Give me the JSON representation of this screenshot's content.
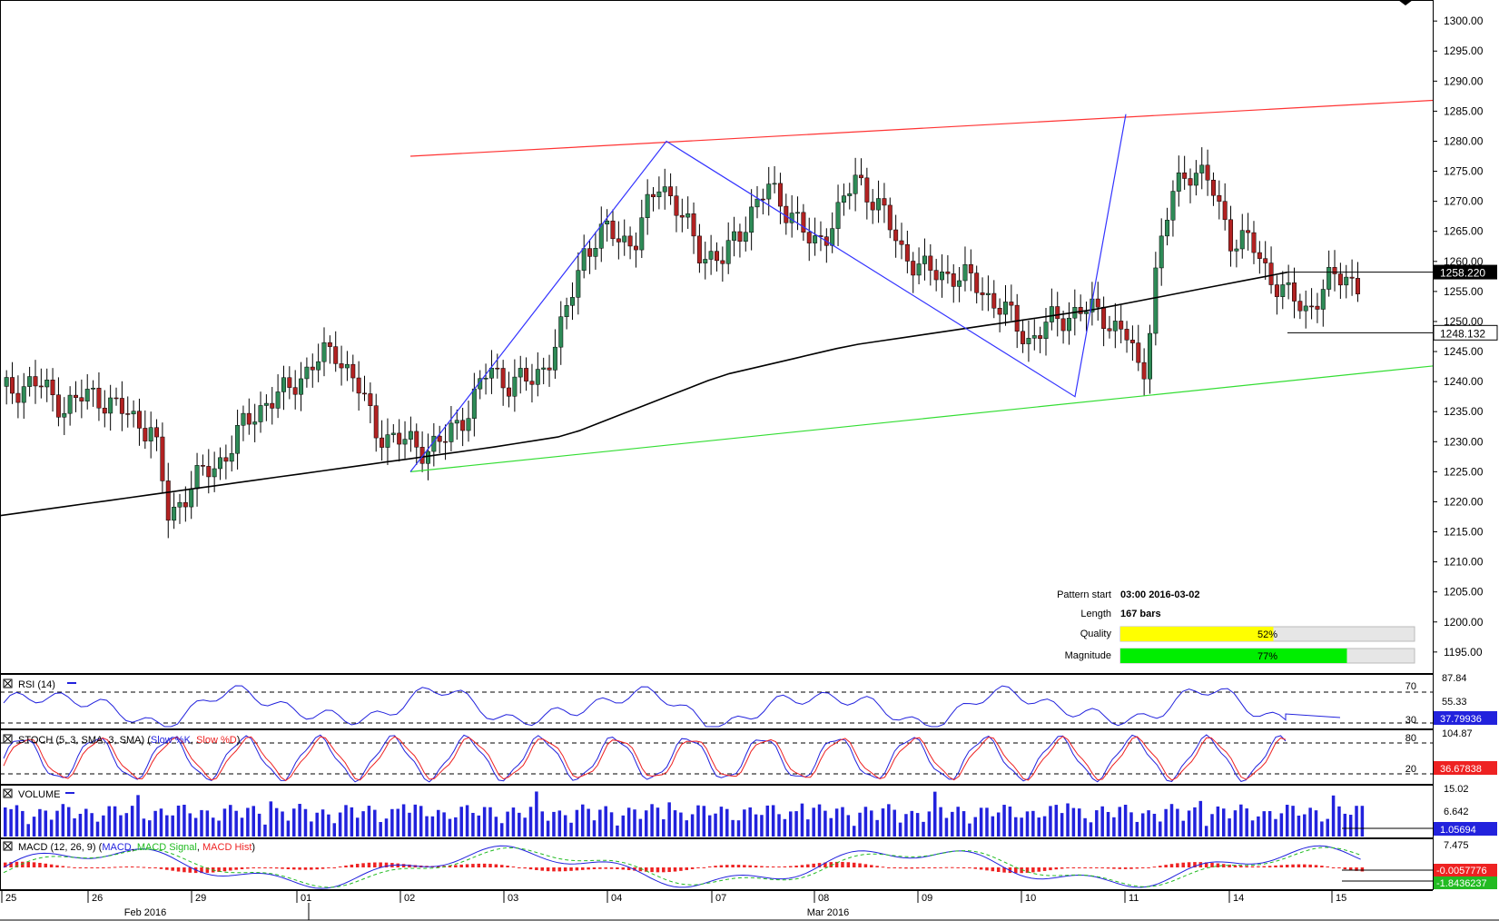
{
  "chart_data": {
    "type": "candlestick",
    "price_axis": {
      "ticks": [
        "1300.00",
        "1295.00",
        "1290.00",
        "1285.00",
        "1280.00",
        "1275.00",
        "1270.00",
        "1265.00",
        "1260.00",
        "1255.00",
        "1250.00",
        "1245.00",
        "1240.00",
        "1235.00",
        "1230.00",
        "1225.00",
        "1220.00",
        "1215.00",
        "1210.00",
        "1205.00",
        "1200.00",
        "1195.00"
      ],
      "ylim": [
        1191.5,
        1303.5
      ]
    },
    "time_axis": {
      "days": [
        "25",
        "26",
        "29",
        "01",
        "02",
        "03",
        "04",
        "07",
        "08",
        "09",
        "10",
        "11",
        "14",
        "15"
      ],
      "months": [
        "Feb 2016",
        "Mar 2016"
      ]
    },
    "last_price_label": "1258.220",
    "current_price_label": "1248.132",
    "channel": {
      "upper": [
        [
          0.0,
          1277.5
        ],
        [
          1.0,
          1286.8
        ]
      ],
      "lower": [
        [
          0.0,
          1225.0
        ],
        [
          1.0,
          1242.6
        ]
      ]
    },
    "zigzag": [
      1225.0,
      1280.0,
      1237.5,
      1284.5
    ],
    "pattern_info": {
      "pattern_start_label": "Pattern start",
      "pattern_start_value": "03:00 2016-03-02",
      "length_label": "Length",
      "length_value": "167 bars",
      "quality_label": "Quality",
      "quality_value": 52,
      "quality_text": "52%",
      "magnitude_label": "Magnitude",
      "magnitude_value": 77,
      "magnitude_text": "77%"
    },
    "indicators": {
      "rsi": {
        "title": "RSI (14)",
        "levels": [
          "70",
          "30"
        ],
        "scale_labels": [
          "87.84",
          "55.33"
        ],
        "value_label": "37.79936"
      },
      "stoch": {
        "title": "STOCH (5, 3, SMA, 3, SMA)",
        "series": [
          "Slow %K",
          "Slow %D"
        ],
        "levels": [
          "80",
          "20"
        ],
        "scale_labels": [
          "104.87"
        ],
        "value_label": "36.67838"
      },
      "volume": {
        "title": "VOLUME",
        "scale_labels": [
          "15.02",
          "6.642"
        ],
        "value_label": "1.05694"
      },
      "macd": {
        "title": "MACD (12, 26, 9)",
        "series": [
          "MACD",
          "MACD Signal",
          "MACD Hist"
        ],
        "scale_labels": [
          "7.475"
        ],
        "value_labels": [
          "-0.0057776",
          "-1.8436237"
        ]
      }
    }
  },
  "colors": {
    "upper_line": "#ff3333",
    "lower_line": "#33dd33",
    "zigzag": "#3333ff",
    "ma": "#000000",
    "quality_fill": "#ffff00",
    "magnitude_fill": "#00ee00",
    "candle_up": "#2e8b57",
    "candle_down": "#b22222"
  }
}
